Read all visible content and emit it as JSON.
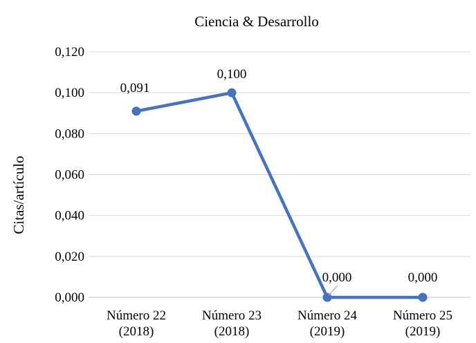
{
  "chart_data": {
    "type": "line",
    "title": "Ciencia & Desarrollo",
    "xlabel": "",
    "ylabel": "Citas/artículo",
    "categories": [
      [
        "Número 22",
        "(2018)"
      ],
      [
        "Número 23",
        "(2018)"
      ],
      [
        "Número 24",
        "(2019)"
      ],
      [
        "Número 25",
        "(2019)"
      ]
    ],
    "series": [
      {
        "values": [
          0.091,
          0.1,
          0.0,
          0.0
        ],
        "labels": [
          "0,091",
          "0,100",
          "0,000",
          "0,000"
        ],
        "color": "#4472c4"
      }
    ],
    "ylim": [
      0,
      0.12
    ],
    "yticks": [
      "0,000",
      "0,020",
      "0,040",
      "0,060",
      "0,080",
      "0,100",
      "0,120"
    ],
    "grid": true,
    "legend": "none"
  }
}
